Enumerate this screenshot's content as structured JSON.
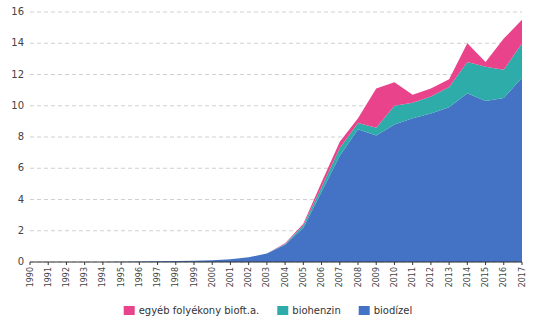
{
  "chart_data": {
    "type": "area",
    "stacked": true,
    "grid": true,
    "legend": "bottom",
    "x": [
      1990,
      1991,
      1992,
      1993,
      1994,
      1995,
      1996,
      1997,
      1998,
      1999,
      2000,
      2001,
      2002,
      2003,
      2004,
      2005,
      2006,
      2007,
      2008,
      2009,
      2010,
      2011,
      2012,
      2013,
      2014,
      2015,
      2016,
      2017
    ],
    "xlim": [
      1990,
      2017
    ],
    "xticks": [
      1990,
      1991,
      1992,
      1993,
      1994,
      1995,
      1996,
      1997,
      1998,
      1999,
      2000,
      2001,
      2002,
      2003,
      2004,
      2005,
      2006,
      2007,
      2008,
      2009,
      2010,
      2011,
      2012,
      2013,
      2014,
      2015,
      2016,
      2017
    ],
    "ylim": [
      0,
      16
    ],
    "yticks": [
      0,
      2,
      4,
      6,
      8,
      10,
      12,
      14,
      16
    ],
    "series": [
      {
        "name": "biodízel",
        "color": "#4472C4",
        "values": [
          0.0,
          0.0,
          0.0,
          0.0,
          0.0,
          0.02,
          0.04,
          0.05,
          0.06,
          0.08,
          0.12,
          0.18,
          0.3,
          0.55,
          1.1,
          2.2,
          4.5,
          6.8,
          8.5,
          8.1,
          8.8,
          9.2,
          9.5,
          9.9,
          10.8,
          10.3,
          10.5,
          11.8
        ]
      },
      {
        "name": "biohenzin",
        "color": "#2EACAA",
        "values": [
          0.0,
          0.0,
          0.0,
          0.0,
          0.0,
          0.0,
          0.0,
          0.0,
          0.0,
          0.0,
          0.0,
          0.0,
          0.0,
          0.0,
          0.05,
          0.15,
          0.3,
          0.5,
          0.4,
          0.5,
          1.2,
          1.0,
          1.1,
          1.3,
          2.0,
          2.2,
          1.8,
          2.2
        ]
      },
      {
        "name": "egyéb folyékony bioft.a.",
        "color": "#E8438B",
        "values": [
          0.0,
          0.0,
          0.0,
          0.0,
          0.0,
          0.0,
          0.0,
          0.0,
          0.0,
          0.0,
          0.0,
          0.0,
          0.0,
          0.0,
          0.05,
          0.1,
          0.3,
          0.4,
          0.3,
          2.5,
          1.5,
          0.5,
          0.5,
          0.5,
          1.2,
          0.3,
          2.0,
          1.5
        ]
      }
    ]
  }
}
